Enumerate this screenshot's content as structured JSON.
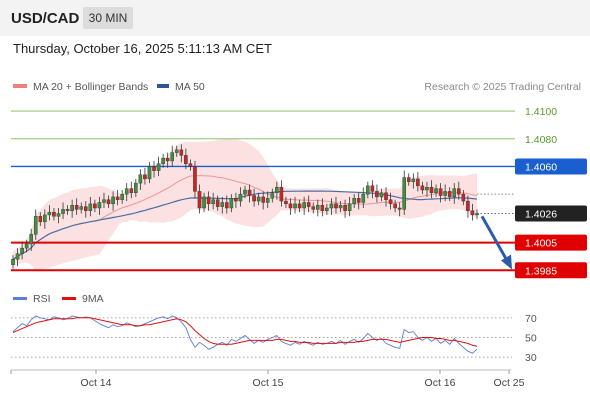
{
  "header": {
    "symbol": "USD/CAD",
    "timeframe": "30 MIN"
  },
  "datetime": "Thursday, October 16, 2025 5:11:13 AM CET",
  "credit": "Research © 2025 Trading Central",
  "colors": {
    "up": "#3f8f3f",
    "down": "#c62828",
    "bands": "#f8c9c9",
    "ma20": "#f08080",
    "ma50": "#4a6fa5",
    "rsi": "#5b7fd6",
    "rsi_ma": "#e01010",
    "resistance_blue": "#1a5fd0",
    "support_red": "#e00000",
    "target_green": "#7cbc52",
    "arrow": "#2a5caa"
  },
  "chart_data": [
    {
      "type": "candlestick",
      "legend": [
        "MA 20 + Bollinger Bands",
        "MA 50"
      ],
      "x_ticks": [
        "Oct 14",
        "Oct 15",
        "Oct 16",
        "Oct 25"
      ],
      "ylim": [
        1.3978,
        1.4108
      ],
      "levels": [
        {
          "value": 1.41,
          "label": "1.4100",
          "style": "target-green"
        },
        {
          "value": 1.408,
          "label": "1.4080",
          "style": "target-green"
        },
        {
          "value": 1.406,
          "label": "1.4060",
          "style": "resistance-blue"
        },
        {
          "value": 1.4026,
          "label": "1.4026",
          "style": "current-price"
        },
        {
          "value": 1.4005,
          "label": "1.4005",
          "style": "support-red"
        },
        {
          "value": 1.3985,
          "label": "1.3985",
          "style": "support-red"
        }
      ],
      "projection": {
        "from": 1.4024,
        "to": 1.3987,
        "direction": "down"
      },
      "closes": [
        1.3993,
        1.3997,
        1.4001,
        1.4004,
        1.4011,
        1.4024,
        1.402,
        1.4025,
        1.4027,
        1.4024,
        1.4026,
        1.4029,
        1.4028,
        1.4032,
        1.4029,
        1.4031,
        1.4028,
        1.4033,
        1.403,
        1.4034,
        1.4036,
        1.4033,
        1.4038,
        1.4036,
        1.404,
        1.4044,
        1.4041,
        1.4048,
        1.4054,
        1.4051,
        1.406,
        1.4057,
        1.4062,
        1.4066,
        1.4064,
        1.407,
        1.4072,
        1.4068,
        1.4062,
        1.406,
        1.4042,
        1.403,
        1.4038,
        1.4033,
        1.4036,
        1.4031,
        1.4034,
        1.403,
        1.4037,
        1.4035,
        1.404,
        1.4043,
        1.4039,
        1.4035,
        1.4038,
        1.4034,
        1.4037,
        1.4041,
        1.4045,
        1.4035,
        1.4033,
        1.403,
        1.4033,
        1.403,
        1.4034,
        1.4031,
        1.4029,
        1.4032,
        1.4028,
        1.403,
        1.4033,
        1.403,
        1.4032,
        1.4028,
        1.4033,
        1.4037,
        1.4034,
        1.404,
        1.4046,
        1.4042,
        1.4038,
        1.4041,
        1.4036,
        1.4033,
        1.403,
        1.4029,
        1.4052,
        1.4049,
        1.4051,
        1.4046,
        1.4043,
        1.4045,
        1.4041,
        1.4044,
        1.4039,
        1.4042,
        1.4038,
        1.4044,
        1.404,
        1.4035,
        1.4028,
        1.4025,
        1.4026
      ]
    },
    {
      "type": "line",
      "legend": [
        "RSI",
        "9MA"
      ],
      "ylim": [
        25,
        78
      ],
      "y_ticks": [
        70,
        50,
        30
      ],
      "series": [
        {
          "name": "RSI",
          "values": [
            56,
            60,
            64,
            62,
            68,
            72,
            70,
            69,
            68,
            71,
            70,
            68,
            69,
            72,
            71,
            70,
            71,
            70,
            67,
            64,
            62,
            60,
            63,
            61,
            62,
            65,
            63,
            61,
            62,
            64,
            66,
            68,
            70,
            71,
            69,
            72,
            70,
            66,
            60,
            48,
            40,
            45,
            42,
            38,
            40,
            43,
            45,
            42,
            48,
            46,
            49,
            52,
            48,
            44,
            47,
            45,
            48,
            50,
            52,
            46,
            44,
            42,
            45,
            43,
            46,
            44,
            42,
            45,
            43,
            44,
            46,
            44,
            47,
            43,
            46,
            48,
            45,
            49,
            54,
            50,
            47,
            49,
            44,
            42,
            40,
            39,
            58,
            55,
            56,
            50,
            47,
            50,
            46,
            49,
            44,
            47,
            43,
            49,
            44,
            40,
            36,
            34,
            38
          ]
        },
        {
          "name": "9MA",
          "values": [
            55,
            57,
            59,
            61,
            63,
            65,
            66,
            67,
            68,
            69,
            69,
            69,
            69,
            69,
            70,
            70,
            70,
            70,
            69,
            68,
            67,
            66,
            65,
            64,
            63,
            63,
            63,
            62,
            62,
            63,
            63,
            64,
            65,
            66,
            67,
            68,
            69,
            68,
            66,
            62,
            57,
            53,
            49,
            46,
            44,
            43,
            43,
            43,
            43,
            44,
            45,
            46,
            47,
            47,
            47,
            47,
            47,
            47,
            48,
            48,
            47,
            46,
            46,
            45,
            45,
            45,
            44,
            44,
            44,
            44,
            44,
            44,
            45,
            45,
            45,
            45,
            46,
            46,
            47,
            48,
            48,
            48,
            48,
            47,
            46,
            45,
            46,
            47,
            48,
            49,
            50,
            50,
            50,
            49,
            49,
            48,
            47,
            47,
            46,
            45,
            44,
            42,
            41
          ]
        }
      ]
    }
  ]
}
